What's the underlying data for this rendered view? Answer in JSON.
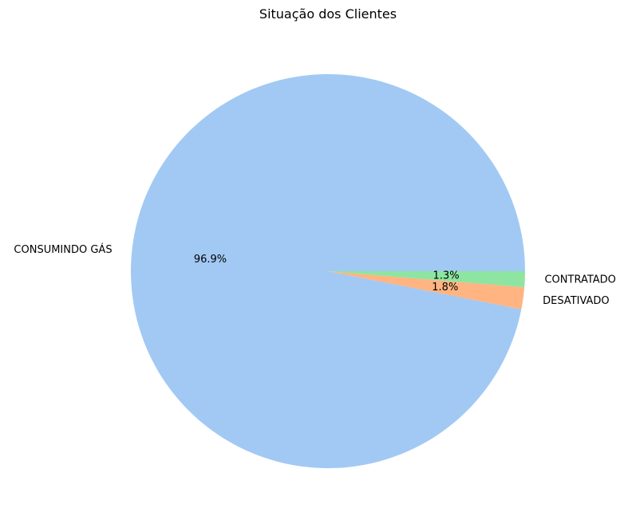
{
  "chart_data": {
    "type": "pie",
    "title": "Situação dos Clientes",
    "labels": [
      "CONSUMINDO GÁS",
      "DESATIVADO",
      "CONTRATADO"
    ],
    "values": [
      96.9,
      1.8,
      1.3
    ],
    "percent_labels": [
      "96.9%",
      "1.8%",
      "1.3%"
    ],
    "colors": [
      "#a1c9f4",
      "#ffb482",
      "#8de5a1"
    ],
    "start_angle_deg": 0,
    "direction": "counterclockwise"
  }
}
